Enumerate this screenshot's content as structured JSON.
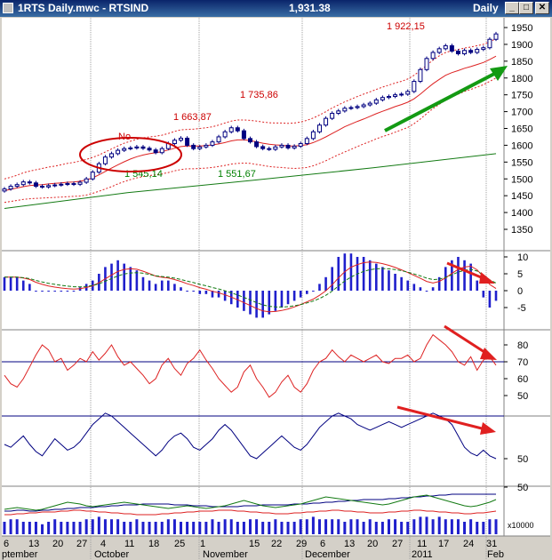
{
  "window": {
    "title": "1RTS Daily.mwc - RTSIND",
    "last_value": "1,931.38",
    "interval": "Daily",
    "buttons": {
      "minimize": "_",
      "maximize": "□",
      "close": "✕"
    }
  },
  "chart_data": {
    "type": "financial-multipanel",
    "price_panel": {
      "axis_ticks": [
        "1950",
        "1900",
        "1850",
        "1800",
        "1750",
        "1700",
        "1650",
        "1600",
        "1550",
        "1500",
        "1450",
        "1400",
        "1350"
      ],
      "ylim": [
        1325,
        1975
      ],
      "annotations": [
        "1 922,15",
        "1 735,86",
        "1 663,87",
        "1 545,14",
        "1 551,67",
        "No"
      ],
      "candle_close": [
        1470,
        1478,
        1483,
        1491,
        1488,
        1478,
        1476,
        1480,
        1482,
        1484,
        1486,
        1484,
        1490,
        1500,
        1520,
        1545,
        1565,
        1575,
        1585,
        1590,
        1592,
        1595,
        1591,
        1586,
        1578,
        1590,
        1605,
        1615,
        1621,
        1600,
        1590,
        1595,
        1600,
        1610,
        1625,
        1640,
        1652,
        1643,
        1620,
        1610,
        1596,
        1590,
        1588,
        1595,
        1600,
        1592,
        1597,
        1605,
        1620,
        1640,
        1660,
        1680,
        1695,
        1702,
        1710,
        1712,
        1715,
        1720,
        1725,
        1735,
        1742,
        1745,
        1750,
        1752,
        1760,
        1790,
        1825,
        1858,
        1876,
        1887,
        1896,
        1880,
        1872,
        1882,
        1876,
        1885,
        1890,
        1915,
        1931
      ],
      "upper_band": [
        1500,
        1505,
        1511,
        1518,
        1523,
        1527,
        1531,
        1535,
        1538,
        1542,
        1546,
        1549,
        1553,
        1558,
        1564,
        1571,
        1580,
        1589,
        1598,
        1606,
        1612,
        1618,
        1622,
        1625,
        1627,
        1630,
        1635,
        1641,
        1646,
        1647,
        1648,
        1650,
        1652,
        1655,
        1660,
        1666,
        1672,
        1675,
        1675,
        1674,
        1672,
        1669,
        1667,
        1666,
        1666,
        1665,
        1666,
        1669,
        1674,
        1681,
        1690,
        1700,
        1711,
        1720,
        1729,
        1737,
        1745,
        1752,
        1759,
        1766,
        1773,
        1779,
        1785,
        1790,
        1797,
        1808,
        1822,
        1838,
        1853,
        1866,
        1876,
        1881,
        1885,
        1889,
        1892,
        1896,
        1900,
        1908,
        1917
      ],
      "middle_ma": [
        1465,
        1469,
        1473,
        1477,
        1480,
        1482,
        1483,
        1485,
        1487,
        1488,
        1490,
        1491,
        1493,
        1497,
        1503,
        1512,
        1522,
        1532,
        1542,
        1551,
        1559,
        1566,
        1571,
        1575,
        1578,
        1581,
        1586,
        1591,
        1596,
        1598,
        1598,
        1598,
        1599,
        1601,
        1604,
        1608,
        1613,
        1616,
        1616,
        1614,
        1610,
        1606,
        1603,
        1601,
        1600,
        1598,
        1598,
        1599,
        1602,
        1608,
        1616,
        1625,
        1635,
        1645,
        1655,
        1663,
        1671,
        1678,
        1686,
        1694,
        1701,
        1708,
        1715,
        1721,
        1728,
        1738,
        1752,
        1768,
        1783,
        1796,
        1808,
        1816,
        1822,
        1829,
        1834,
        1840,
        1846,
        1855,
        1865
      ],
      "lower_band": [
        1430,
        1433,
        1436,
        1439,
        1441,
        1442,
        1443,
        1444,
        1445,
        1446,
        1447,
        1448,
        1449,
        1452,
        1457,
        1463,
        1470,
        1477,
        1485,
        1492,
        1498,
        1503,
        1507,
        1510,
        1512,
        1515,
        1519,
        1524,
        1528,
        1530,
        1530,
        1531,
        1532,
        1534,
        1537,
        1540,
        1544,
        1546,
        1547,
        1546,
        1543,
        1540,
        1537,
        1535,
        1534,
        1532,
        1531,
        1532,
        1534,
        1539,
        1546,
        1554,
        1563,
        1572,
        1580,
        1588,
        1596,
        1604,
        1611,
        1619,
        1626,
        1632,
        1639,
        1646,
        1653,
        1664,
        1678,
        1694,
        1709,
        1722,
        1734,
        1744,
        1752,
        1760,
        1766,
        1773,
        1780,
        1790,
        1800
      ],
      "long_ma": [
        1412,
        1459,
        1495,
        1533,
        1575
      ]
    },
    "macd_panel": {
      "axis_ticks": [
        "10",
        "5",
        "0",
        "-5"
      ],
      "ylim": [
        -9,
        13
      ],
      "histogram": [
        4,
        4,
        4,
        3,
        2,
        0,
        0,
        0,
        0,
        0,
        0,
        0,
        1,
        2,
        3,
        5,
        7,
        8,
        9,
        8,
        7,
        6,
        4,
        3,
        2,
        3,
        3,
        2,
        1,
        0,
        0,
        -1,
        -1,
        -2,
        -2,
        -3,
        -4,
        -5,
        -6,
        -7,
        -8,
        -8,
        -7,
        -6,
        -5,
        -4,
        -3,
        -2,
        -1,
        0,
        2,
        4,
        7,
        10,
        11,
        11,
        10,
        10,
        9,
        8,
        7,
        6,
        5,
        4,
        3,
        2,
        1,
        0,
        1,
        4,
        7,
        9,
        10,
        9,
        8,
        3,
        -2,
        -5,
        -3
      ]
    },
    "rsi_panel": {
      "axis_ticks": [
        "80",
        "70",
        "60",
        "50"
      ],
      "ylim": [
        40,
        92
      ],
      "reference_line": 70,
      "values": [
        62,
        57,
        55,
        60,
        67,
        74,
        80,
        77,
        70,
        72,
        65,
        68,
        72,
        70,
        76,
        71,
        75,
        80,
        73,
        68,
        70,
        66,
        62,
        57,
        60,
        68,
        72,
        66,
        62,
        69,
        72,
        77,
        71,
        66,
        60,
        56,
        52,
        55,
        64,
        68,
        60,
        55,
        49,
        52,
        58,
        62,
        55,
        52,
        57,
        65,
        70,
        72,
        77,
        73,
        70,
        74,
        72,
        70,
        72,
        74,
        70,
        69,
        72,
        72,
        74,
        70,
        72,
        80,
        86,
        83,
        80,
        76,
        70,
        68,
        73,
        65,
        71,
        73,
        68
      ]
    },
    "stoch_panel": {
      "axis_ticks": [
        "50"
      ],
      "values": [
        60,
        58,
        62,
        66,
        60,
        55,
        52,
        58,
        64,
        60,
        56,
        58,
        62,
        68,
        74,
        78,
        82,
        80,
        76,
        72,
        68,
        64,
        60,
        56,
        52,
        56,
        62,
        66,
        68,
        64,
        58,
        56,
        60,
        64,
        70,
        74,
        70,
        64,
        58,
        52,
        50,
        54,
        58,
        62,
        66,
        62,
        58,
        56,
        60,
        66,
        72,
        76,
        80,
        82,
        80,
        78,
        74,
        72,
        70,
        72,
        74,
        76,
        74,
        72,
        74,
        76,
        78,
        80,
        82,
        80,
        78,
        74,
        66,
        58,
        54,
        52,
        56,
        52,
        50
      ],
      "signal": [
        60,
        60,
        61,
        62,
        62,
        60,
        58,
        57,
        58,
        59,
        59,
        59,
        60,
        62,
        64,
        67,
        70,
        73,
        74,
        74,
        73,
        71,
        69,
        66,
        63,
        61,
        60,
        60,
        61,
        62,
        62,
        62,
        62,
        62,
        63,
        65,
        66,
        66,
        64,
        61,
        58,
        56,
        55,
        55,
        56,
        58,
        59,
        59,
        59,
        60,
        62,
        64,
        67,
        70,
        73,
        75,
        76,
        76,
        75,
        75,
        74,
        74,
        74,
        74,
        74,
        74,
        75,
        76,
        77,
        78,
        78,
        78,
        77,
        74,
        70,
        66,
        63,
        60,
        57
      ],
      "reference_line": 80
    },
    "dmi_panel": {
      "axis_ticks": [
        "50"
      ],
      "plus_di": [
        14,
        15,
        16,
        15,
        14,
        13,
        14,
        16,
        18,
        20,
        22,
        21,
        20,
        18,
        17,
        18,
        19,
        20,
        21,
        22,
        21,
        20,
        19,
        18,
        17,
        16,
        15,
        16,
        17,
        18,
        17,
        16,
        15,
        16,
        17,
        18,
        20,
        22,
        24,
        22,
        20,
        18,
        17,
        16,
        17,
        18,
        19,
        20,
        22,
        24,
        26,
        28,
        27,
        26,
        25,
        24,
        23,
        22,
        21,
        20,
        19,
        20,
        22,
        24,
        26,
        28,
        29,
        30,
        28,
        26,
        24,
        22,
        20,
        18,
        17,
        18,
        20,
        22,
        25
      ],
      "minus_di": [
        12,
        12,
        13,
        13,
        12,
        12,
        13,
        13,
        14,
        14,
        15,
        15,
        16,
        16,
        16,
        17,
        17,
        18,
        18,
        19,
        19,
        19,
        20,
        20,
        20,
        20,
        20,
        19,
        19,
        19,
        18,
        18,
        18,
        17,
        17,
        17,
        17,
        17,
        18,
        18,
        18,
        19,
        19,
        19,
        19,
        19,
        20,
        20,
        20,
        21,
        21,
        22,
        22,
        23,
        23,
        24,
        24,
        25,
        25,
        25,
        25,
        26,
        26,
        27,
        27,
        28,
        28,
        29,
        29,
        30,
        30,
        31,
        31,
        31,
        31,
        31,
        31,
        31,
        31
      ],
      "adx": [
        8,
        8,
        9,
        9,
        10,
        10,
        11,
        11,
        11,
        12,
        12,
        13,
        13,
        12,
        12,
        11,
        11,
        10,
        10,
        9,
        9,
        8,
        8,
        8,
        8,
        9,
        9,
        10,
        10,
        11,
        11,
        12,
        12,
        12,
        13,
        13,
        13,
        12,
        12,
        11,
        11,
        10,
        10,
        9,
        9,
        9,
        10,
        10,
        11,
        11,
        12,
        12,
        13,
        13,
        12,
        12,
        11,
        11,
        10,
        10,
        10,
        11,
        11,
        12,
        12,
        13,
        13,
        12,
        12,
        11,
        11,
        10,
        10,
        9,
        9,
        10,
        10,
        11,
        12
      ]
    },
    "volume_panel": {
      "axis_label": "x10000",
      "values": [
        5,
        6,
        6,
        5,
        5,
        5,
        4,
        5,
        6,
        5,
        5,
        5,
        5,
        6,
        6,
        7,
        6,
        6,
        6,
        5,
        5,
        6,
        5,
        5,
        5,
        5,
        6,
        6,
        5,
        5,
        5,
        5,
        5,
        6,
        5,
        6,
        6,
        5,
        5,
        6,
        6,
        5,
        5,
        6,
        5,
        5,
        5,
        6,
        6,
        7,
        6,
        6,
        6,
        6,
        5,
        6,
        6,
        5,
        6,
        5,
        5,
        6,
        6,
        5,
        5,
        6,
        7,
        7,
        6,
        7,
        6,
        6,
        6,
        5,
        6,
        5,
        5,
        6,
        6
      ]
    },
    "x_axis": {
      "ticks": [
        "6",
        "13",
        "20",
        "27",
        "4",
        "11",
        "18",
        "25",
        "1",
        "15",
        "22",
        "29",
        "6",
        "13",
        "20",
        "27",
        "11",
        "17",
        "24",
        "31"
      ],
      "months": [
        "ptember",
        "October",
        "November",
        "December",
        "2011",
        "Feb"
      ]
    }
  }
}
